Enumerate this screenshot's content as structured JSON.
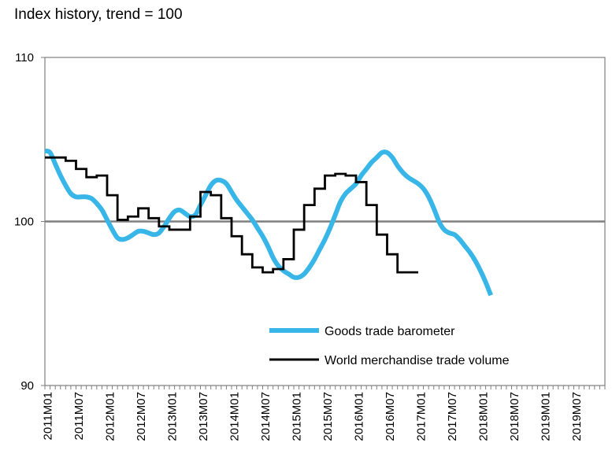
{
  "chart_data": {
    "type": "line",
    "title": "",
    "subtitle": "Index history, trend = 100",
    "xlabel": "",
    "ylabel": "",
    "ylim": [
      90,
      110
    ],
    "yticks": [
      90,
      100,
      110
    ],
    "reference_line": 100,
    "x_tick_labels": [
      "2011M01",
      "2011M07",
      "2012M01",
      "2012M07",
      "2013M01",
      "2013M07",
      "2014M01",
      "2014M07",
      "2015M01",
      "2015M07",
      "2016M01",
      "2016M07",
      "2017M01",
      "2017M07",
      "2018M01",
      "2018M07",
      "2019M01",
      "2019M07"
    ],
    "legend": [
      "Goods trade barometer",
      "World merchandise trade volume"
    ],
    "legend_position": "bottom-right",
    "series": [
      {
        "name": "Goods trade barometer",
        "color": "#38B6E8",
        "style": "smooth",
        "points": [
          [
            0,
            104.3
          ],
          [
            1,
            104.2
          ],
          [
            2,
            103.5
          ],
          [
            3,
            102.8
          ],
          [
            4,
            102.2
          ],
          [
            5,
            101.7
          ],
          [
            6,
            101.5
          ],
          [
            7,
            101.5
          ],
          [
            8,
            101.5
          ],
          [
            9,
            101.4
          ],
          [
            10,
            101.1
          ],
          [
            11,
            100.7
          ],
          [
            12,
            100.1
          ],
          [
            13,
            99.5
          ],
          [
            14,
            99.0
          ],
          [
            15,
            98.9
          ],
          [
            16,
            99.0
          ],
          [
            17,
            99.2
          ],
          [
            18,
            99.4
          ],
          [
            19,
            99.4
          ],
          [
            20,
            99.3
          ],
          [
            21,
            99.2
          ],
          [
            22,
            99.3
          ],
          [
            23,
            99.7
          ],
          [
            24,
            100.2
          ],
          [
            25,
            100.6
          ],
          [
            26,
            100.7
          ],
          [
            27,
            100.5
          ],
          [
            28,
            100.3
          ],
          [
            29,
            100.4
          ],
          [
            30,
            101.0
          ],
          [
            31,
            101.6
          ],
          [
            32,
            102.2
          ],
          [
            33,
            102.5
          ],
          [
            34,
            102.5
          ],
          [
            35,
            102.3
          ],
          [
            36,
            101.8
          ],
          [
            37,
            101.3
          ],
          [
            38,
            100.9
          ],
          [
            39,
            100.5
          ],
          [
            40,
            100.1
          ],
          [
            41,
            99.6
          ],
          [
            42,
            99.1
          ],
          [
            43,
            98.5
          ],
          [
            44,
            97.8
          ],
          [
            45,
            97.3
          ],
          [
            46,
            97.0
          ],
          [
            47,
            96.8
          ],
          [
            48,
            96.6
          ],
          [
            49,
            96.6
          ],
          [
            50,
            96.8
          ],
          [
            51,
            97.2
          ],
          [
            52,
            97.7
          ],
          [
            53,
            98.3
          ],
          [
            54,
            98.9
          ],
          [
            55,
            99.6
          ],
          [
            56,
            100.4
          ],
          [
            57,
            101.2
          ],
          [
            58,
            101.7
          ],
          [
            59,
            102.0
          ],
          [
            60,
            102.3
          ],
          [
            61,
            102.8
          ],
          [
            62,
            103.2
          ],
          [
            63,
            103.6
          ],
          [
            64,
            103.9
          ],
          [
            65,
            104.2
          ],
          [
            66,
            104.2
          ],
          [
            67,
            103.9
          ],
          [
            68,
            103.4
          ],
          [
            69,
            103.0
          ],
          [
            70,
            102.7
          ],
          [
            71,
            102.5
          ],
          [
            72,
            102.3
          ],
          [
            73,
            102.0
          ],
          [
            74,
            101.5
          ],
          [
            75,
            100.8
          ],
          [
            76,
            100.0
          ],
          [
            77,
            99.5
          ],
          [
            78,
            99.3
          ],
          [
            79,
            99.2
          ],
          [
            80,
            98.9
          ],
          [
            81,
            98.5
          ],
          [
            82,
            98.1
          ],
          [
            83,
            97.6
          ],
          [
            84,
            97.0
          ],
          [
            85,
            96.3
          ],
          [
            86,
            95.5
          ]
        ]
      },
      {
        "name": "World merchandise trade volume",
        "color": "#000000",
        "style": "step",
        "points": [
          [
            0,
            103.9
          ],
          [
            3,
            103.9
          ],
          [
            4,
            103.7
          ],
          [
            6,
            103.2
          ],
          [
            8,
            102.7
          ],
          [
            10,
            102.8
          ],
          [
            12,
            101.6
          ],
          [
            14,
            100.1
          ],
          [
            16,
            100.3
          ],
          [
            18,
            100.8
          ],
          [
            20,
            100.2
          ],
          [
            22,
            99.7
          ],
          [
            24,
            99.5
          ],
          [
            26,
            99.5
          ],
          [
            28,
            100.3
          ],
          [
            30,
            101.8
          ],
          [
            32,
            101.6
          ],
          [
            34,
            100.2
          ],
          [
            36,
            99.1
          ],
          [
            38,
            98.0
          ],
          [
            40,
            97.2
          ],
          [
            42,
            96.9
          ],
          [
            44,
            97.1
          ],
          [
            46,
            97.7
          ],
          [
            48,
            99.5
          ],
          [
            50,
            101.0
          ],
          [
            52,
            102.0
          ],
          [
            54,
            102.8
          ],
          [
            56,
            102.9
          ],
          [
            58,
            102.8
          ],
          [
            60,
            102.4
          ],
          [
            62,
            101.0
          ],
          [
            64,
            99.2
          ],
          [
            66,
            98.0
          ],
          [
            68,
            96.9
          ],
          [
            70,
            96.9
          ]
        ]
      }
    ]
  }
}
